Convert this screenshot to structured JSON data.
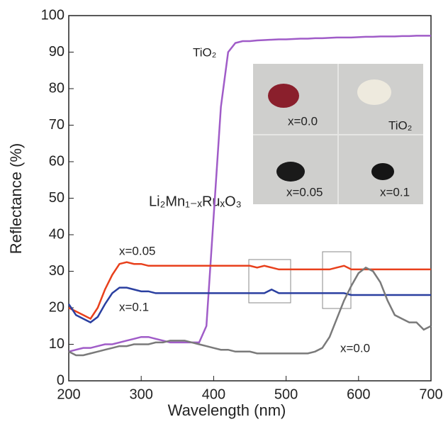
{
  "chart_data": {
    "type": "line",
    "xlabel": "Wavelength (nm)",
    "ylabel": "Reflectance (%)",
    "formula": "Li₂Mn₁₋ₓRuₓO₃",
    "xlim": [
      200,
      700
    ],
    "xticks": [
      200,
      300,
      400,
      500,
      600,
      700
    ],
    "ylim": [
      0,
      100
    ],
    "yticks": [
      0,
      10,
      20,
      30,
      40,
      50,
      60,
      70,
      80,
      90,
      100
    ],
    "x": [
      200,
      210,
      220,
      230,
      240,
      250,
      260,
      270,
      280,
      290,
      300,
      310,
      320,
      330,
      340,
      350,
      360,
      370,
      380,
      390,
      400,
      410,
      420,
      430,
      440,
      450,
      460,
      470,
      480,
      490,
      500,
      510,
      520,
      530,
      540,
      550,
      560,
      570,
      580,
      590,
      600,
      610,
      620,
      630,
      640,
      650,
      660,
      670,
      680,
      690,
      700
    ],
    "series": [
      {
        "name": "TiO₂",
        "color": "#a05cc8",
        "values": [
          8,
          8.5,
          9,
          9,
          9.5,
          10,
          10,
          10.5,
          11,
          11.5,
          12,
          12,
          11.5,
          11,
          10.5,
          10.5,
          10.5,
          10.5,
          10.5,
          15,
          45,
          75,
          90,
          92.5,
          93,
          93,
          93.2,
          93.3,
          93.4,
          93.5,
          93.5,
          93.6,
          93.7,
          93.7,
          93.8,
          93.8,
          93.9,
          94,
          94,
          94,
          94.1,
          94.2,
          94.2,
          94.3,
          94.3,
          94.3,
          94.4,
          94.4,
          94.5,
          94.5,
          94.5
        ]
      },
      {
        "name": "x=0.05",
        "color": "#e8401c",
        "values": [
          20,
          19,
          18,
          17,
          20,
          25,
          29,
          32,
          32.5,
          32,
          32,
          31.5,
          31.5,
          31.5,
          31.5,
          31.5,
          31.5,
          31.5,
          31.5,
          31.5,
          31.5,
          31.5,
          31.5,
          31.5,
          31.5,
          31.5,
          31,
          31.5,
          31,
          30.5,
          30.5,
          30.5,
          30.5,
          30.5,
          30.5,
          30.5,
          30.5,
          31,
          31.5,
          30.5,
          30.5,
          30.5,
          30.5,
          30.5,
          30.5,
          30.5,
          30.5,
          30.5,
          30.5,
          30.5,
          30.5
        ]
      },
      {
        "name": "x=0.1",
        "color": "#2a3fa0",
        "values": [
          21,
          18,
          17,
          16,
          17.5,
          21,
          24,
          25.5,
          25.5,
          25,
          24.5,
          24.5,
          24,
          24,
          24,
          24,
          24,
          24,
          24,
          24,
          24,
          24,
          24,
          24,
          24,
          24,
          24,
          24,
          25,
          24,
          24,
          24,
          24,
          24,
          24,
          24,
          24,
          24,
          24,
          23.5,
          23.5,
          23.5,
          23.5,
          23.5,
          23.5,
          23.5,
          23.5,
          23.5,
          23.5,
          23.5,
          23.5
        ]
      },
      {
        "name": "x=0.0",
        "color": "#7a7a7a",
        "values": [
          8,
          7,
          7,
          7.5,
          8,
          8.5,
          9,
          9.5,
          9.5,
          10,
          10,
          10,
          10.5,
          10.5,
          11,
          11,
          11,
          10.5,
          10,
          9.5,
          9,
          8.5,
          8.5,
          8,
          8,
          8,
          7.5,
          7.5,
          7.5,
          7.5,
          7.5,
          7.5,
          7.5,
          7.5,
          8,
          9,
          12,
          17,
          22,
          26,
          29.5,
          31,
          30,
          27,
          22,
          18,
          17,
          16,
          16,
          14,
          15
        ]
      }
    ],
    "inset_labels": [
      "x=0.0",
      "TiO₂",
      "x=0.05",
      "x=0.1"
    ]
  }
}
